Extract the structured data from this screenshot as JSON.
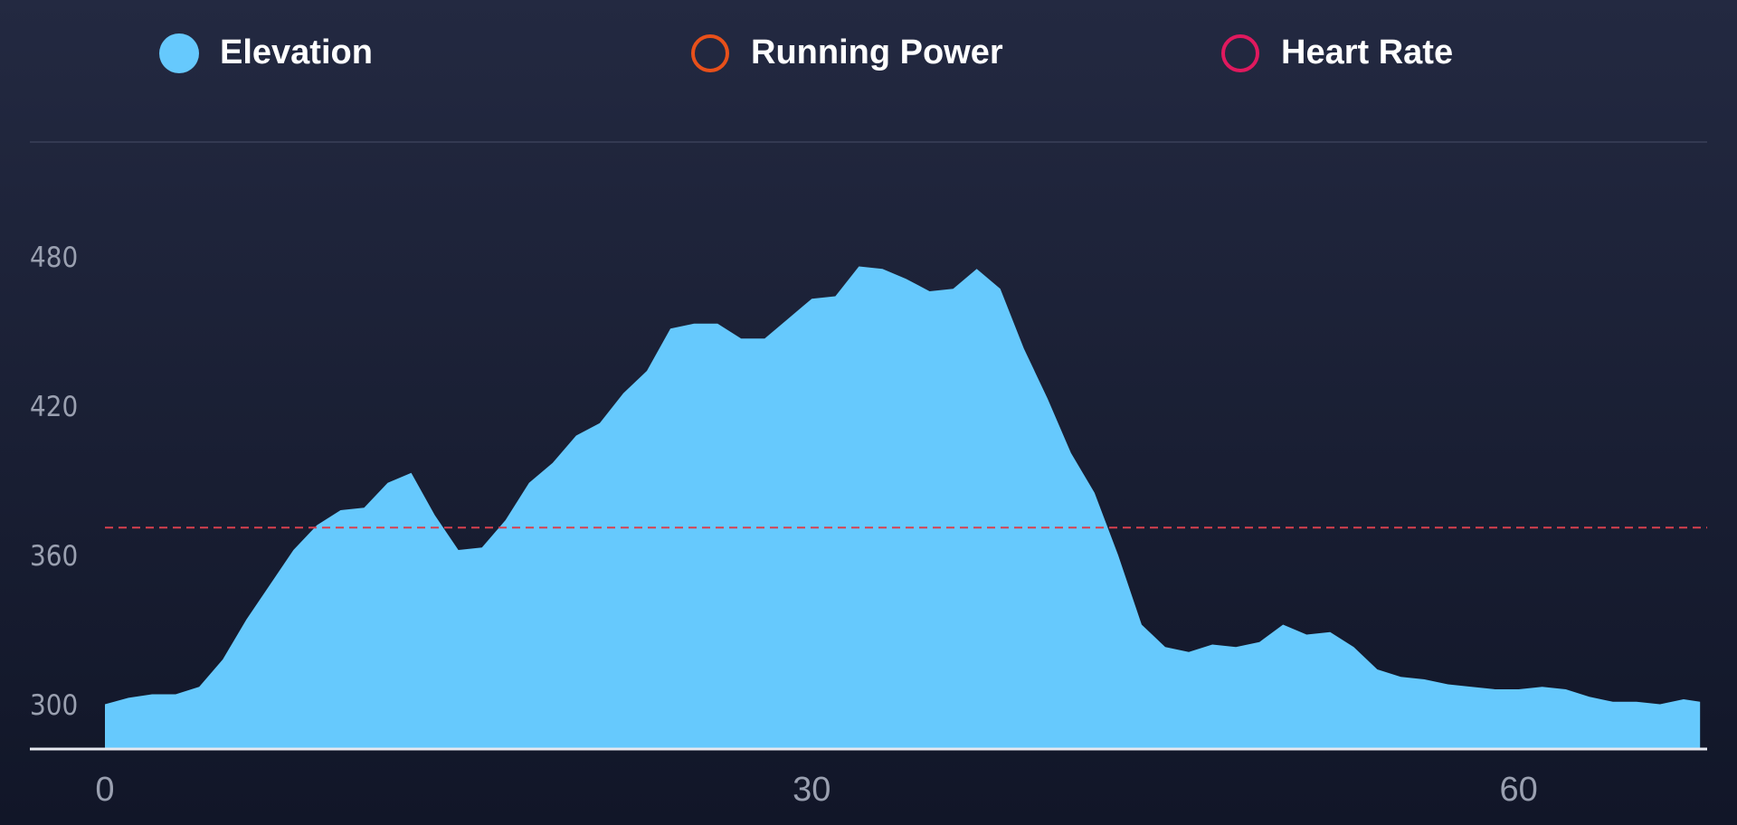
{
  "chart_data": {
    "type": "area",
    "series": [
      {
        "name": "Elevation",
        "color": "#66c9fd",
        "values": [
          301,
          303.6,
          305,
          305,
          308,
          319,
          335,
          349,
          363,
          373,
          379,
          380,
          390,
          394,
          377,
          363,
          364,
          375,
          390,
          398,
          409,
          414,
          426,
          435,
          452,
          454,
          454,
          448,
          448,
          456,
          464,
          465,
          477,
          476,
          472,
          467,
          468,
          476,
          468,
          444,
          424,
          402,
          386,
          361,
          333,
          324,
          322,
          325,
          324,
          326,
          333,
          329,
          330,
          324,
          315,
          312,
          311,
          309,
          308,
          307,
          307,
          308,
          307,
          304,
          302,
          302,
          301,
          303,
          302
        ]
      }
    ],
    "x": [
      0,
      1,
      2,
      3,
      4,
      5,
      6,
      7,
      8,
      9,
      10,
      11,
      12,
      13,
      14,
      15,
      16,
      17,
      18,
      19,
      20,
      21,
      22,
      23,
      24,
      25,
      26,
      27,
      28,
      29,
      30,
      31,
      32,
      33,
      34,
      35,
      36,
      37,
      38,
      39,
      40,
      41,
      42,
      43,
      44,
      45,
      46,
      47,
      48,
      49,
      50,
      51,
      52,
      53,
      54,
      55,
      56,
      57,
      58,
      59,
      60,
      61,
      62,
      63,
      64,
      65,
      66,
      67,
      67.7
    ],
    "inactive_series": [
      {
        "name": "Running Power",
        "color": "#e8501a"
      },
      {
        "name": "Heart Rate",
        "color": "#e0195e"
      }
    ],
    "ref_line": {
      "value": 372,
      "color": "#d8404f"
    },
    "xlim": [
      0,
      68
    ],
    "xticks": [
      0,
      30,
      60
    ],
    "ylim": [
      283,
      527
    ],
    "yticks": [
      300,
      360,
      420,
      480
    ]
  }
}
